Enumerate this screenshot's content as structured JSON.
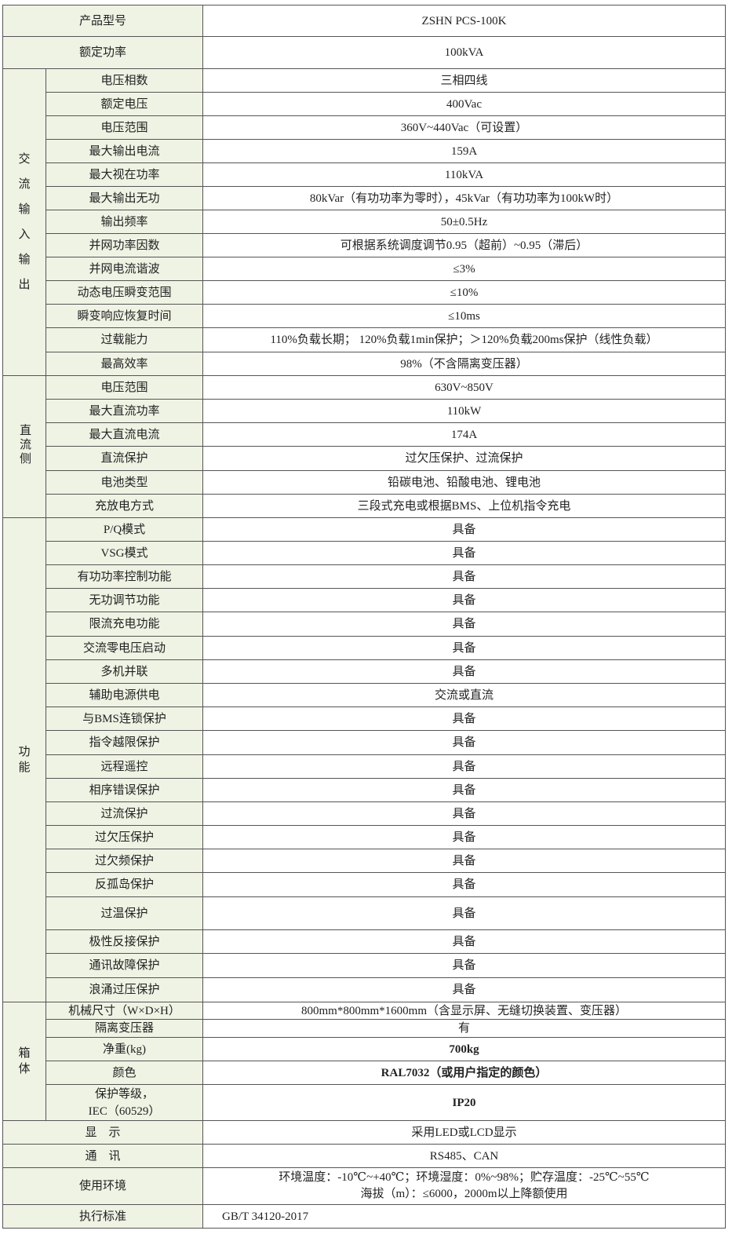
{
  "top_rows": [
    {
      "label": "产品型号",
      "value": "ZSHN PCS-100K"
    },
    {
      "label": "额定功率",
      "value": "100kVA"
    }
  ],
  "groups": [
    {
      "name": "交流输入输出",
      "name_chars": [
        "交",
        "流",
        "输",
        "入",
        "输",
        "出"
      ],
      "rows": [
        {
          "label": "电压相数",
          "value": "三相四线"
        },
        {
          "label": "额定电压",
          "value": "400Vac"
        },
        {
          "label": "电压范围",
          "value": "360V~440Vac（可设置）"
        },
        {
          "label": "最大输出电流",
          "value": "159A"
        },
        {
          "label": "最大视在功率",
          "value": "110kVA"
        },
        {
          "label": "最大输出无功",
          "value": "80kVar（有功功率为零时），45kVar（有功功率为100kW时）"
        },
        {
          "label": "输出频率",
          "value": "50±0.5Hz"
        },
        {
          "label": "并网功率因数",
          "value": "可根据系统调度调节0.95（超前）~0.95（滞后）"
        },
        {
          "label": "并网电流谐波",
          "value": "≤3%"
        },
        {
          "label": "动态电压瞬变范围",
          "value": "≤10%"
        },
        {
          "label": "瞬变响应恢复时间",
          "value": "≤10ms"
        },
        {
          "label": "过载能力",
          "value": "110%负载长期； 120%负载1min保护；＞120%负载200ms保护（线性负载）"
        },
        {
          "label": "最高效率",
          "value": "98%（不含隔离变压器）"
        }
      ]
    },
    {
      "name": "直流侧",
      "name_chars": [
        "直",
        "流",
        "侧"
      ],
      "rows": [
        {
          "label": "电压范围",
          "value": "630V~850V"
        },
        {
          "label": "最大直流功率",
          "value": "110kW"
        },
        {
          "label": "最大直流电流",
          "value": "174A"
        },
        {
          "label": "直流保护",
          "value": "过欠压保护、过流保护"
        },
        {
          "label": "电池类型",
          "value": "铅碳电池、铅酸电池、锂电池"
        },
        {
          "label": "充放电方式",
          "value": "三段式充电或根据BMS、上位机指令充电"
        }
      ]
    },
    {
      "name": "功能",
      "name_chars": [
        "功",
        "能"
      ],
      "rows": [
        {
          "label": "P/Q模式",
          "value": "具备"
        },
        {
          "label": "VSG模式",
          "value": "具备"
        },
        {
          "label": "有功功率控制功能",
          "value": "具备"
        },
        {
          "label": "无功调节功能",
          "value": "具备"
        },
        {
          "label": "限流充电功能",
          "value": "具备"
        },
        {
          "label": "交流零电压启动",
          "value": "具备"
        },
        {
          "label": "多机并联",
          "value": "具备"
        },
        {
          "label": "辅助电源供电",
          "value": "交流或直流"
        },
        {
          "label": "与BMS连锁保护",
          "value": "具备"
        },
        {
          "label": "指令越限保护",
          "value": "具备"
        },
        {
          "label": "远程遥控",
          "value": "具备"
        },
        {
          "label": "相序错误保护",
          "value": "具备"
        },
        {
          "label": "过流保护",
          "value": "具备"
        },
        {
          "label": "过欠压保护",
          "value": "具备"
        },
        {
          "label": "过欠频保护",
          "value": "具备"
        },
        {
          "label": "反孤岛保护",
          "value": "具备"
        },
        {
          "label": "过温保护",
          "value": "具备"
        },
        {
          "label": "极性反接保护",
          "value": "具备"
        },
        {
          "label": "通讯故障保护",
          "value": "具备"
        },
        {
          "label": "浪涌过压保护",
          "value": "具备"
        }
      ]
    },
    {
      "name": "箱体",
      "name_chars": [
        "箱",
        "体"
      ],
      "rows": [
        {
          "label": "机械尺寸（W×D×H）",
          "value": "800mm*800mm*1600mm（含显示屏、无缝切换装置、变压器）"
        },
        {
          "label": "隔离变压器",
          "value": "有"
        },
        {
          "label": "净重(kg)",
          "value": "700kg"
        },
        {
          "label": "颜色",
          "value": "RAL7032（或用户指定的颜色）"
        },
        {
          "label": "保护等级，",
          "label2": "IEC（60529）",
          "value": "IP20"
        }
      ]
    }
  ],
  "bottom_rows": [
    {
      "label": "显　示",
      "value": "采用LED或LCD显示"
    },
    {
      "label": "通　讯",
      "value": "RS485、CAN"
    },
    {
      "label": "使用环境",
      "value": "环境温度：-10℃~+40℃；环境湿度：0%~98%；贮存温度：-25℃~55℃",
      "value2": "海拔（m）：≤6000，2000m以上降额使用"
    },
    {
      "label": "执行标准",
      "value": "GB/T 34120-2017"
    }
  ]
}
